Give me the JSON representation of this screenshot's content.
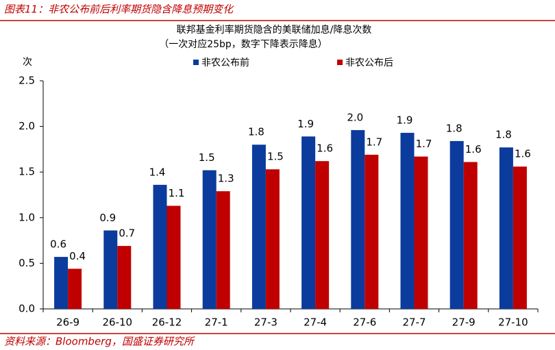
{
  "header": "图表11：非农公布前后利率期货隐含降息预期变化",
  "source": "资料来源：Bloomberg，国盛证券研究所",
  "chart_data": {
    "type": "bar",
    "title": "联邦基金利率期货隐含的美联储加息/降息次数",
    "subtitle": "（一次对应25bp，数字下降表示降息）",
    "y_label": "次",
    "categories": [
      "26-9",
      "26-10",
      "26-12",
      "27-1",
      "27-3",
      "27-4",
      "27-6",
      "27-7",
      "27-9",
      "27-10"
    ],
    "series": [
      {
        "name": "非农公布前",
        "color": "#0b3b9c",
        "values": [
          0.57,
          0.86,
          1.36,
          1.52,
          1.8,
          1.89,
          1.96,
          1.93,
          1.84,
          1.77
        ],
        "value_labels": [
          "0.6",
          "0.9",
          "1.4",
          "1.5",
          "1.8",
          "1.9",
          "2.0",
          "1.9",
          "1.8",
          "1.8"
        ]
      },
      {
        "name": "非农公布后",
        "color": "#c00000",
        "values": [
          0.44,
          0.69,
          1.13,
          1.29,
          1.53,
          1.62,
          1.69,
          1.67,
          1.61,
          1.56
        ],
        "value_labels": [
          "0.4",
          "0.7",
          "1.1",
          "1.3",
          "1.5",
          "1.6",
          "1.7",
          "1.7",
          "1.6",
          "1.6"
        ]
      }
    ],
    "ylim": [
      0,
      2.5
    ],
    "yticks": [
      {
        "value": 0,
        "label": "0.0"
      },
      0.5,
      {
        "value": 1,
        "label": "1.0"
      },
      1.5,
      {
        "value": 2,
        "label": "2.0"
      },
      2.5
    ],
    "grid": false
  }
}
